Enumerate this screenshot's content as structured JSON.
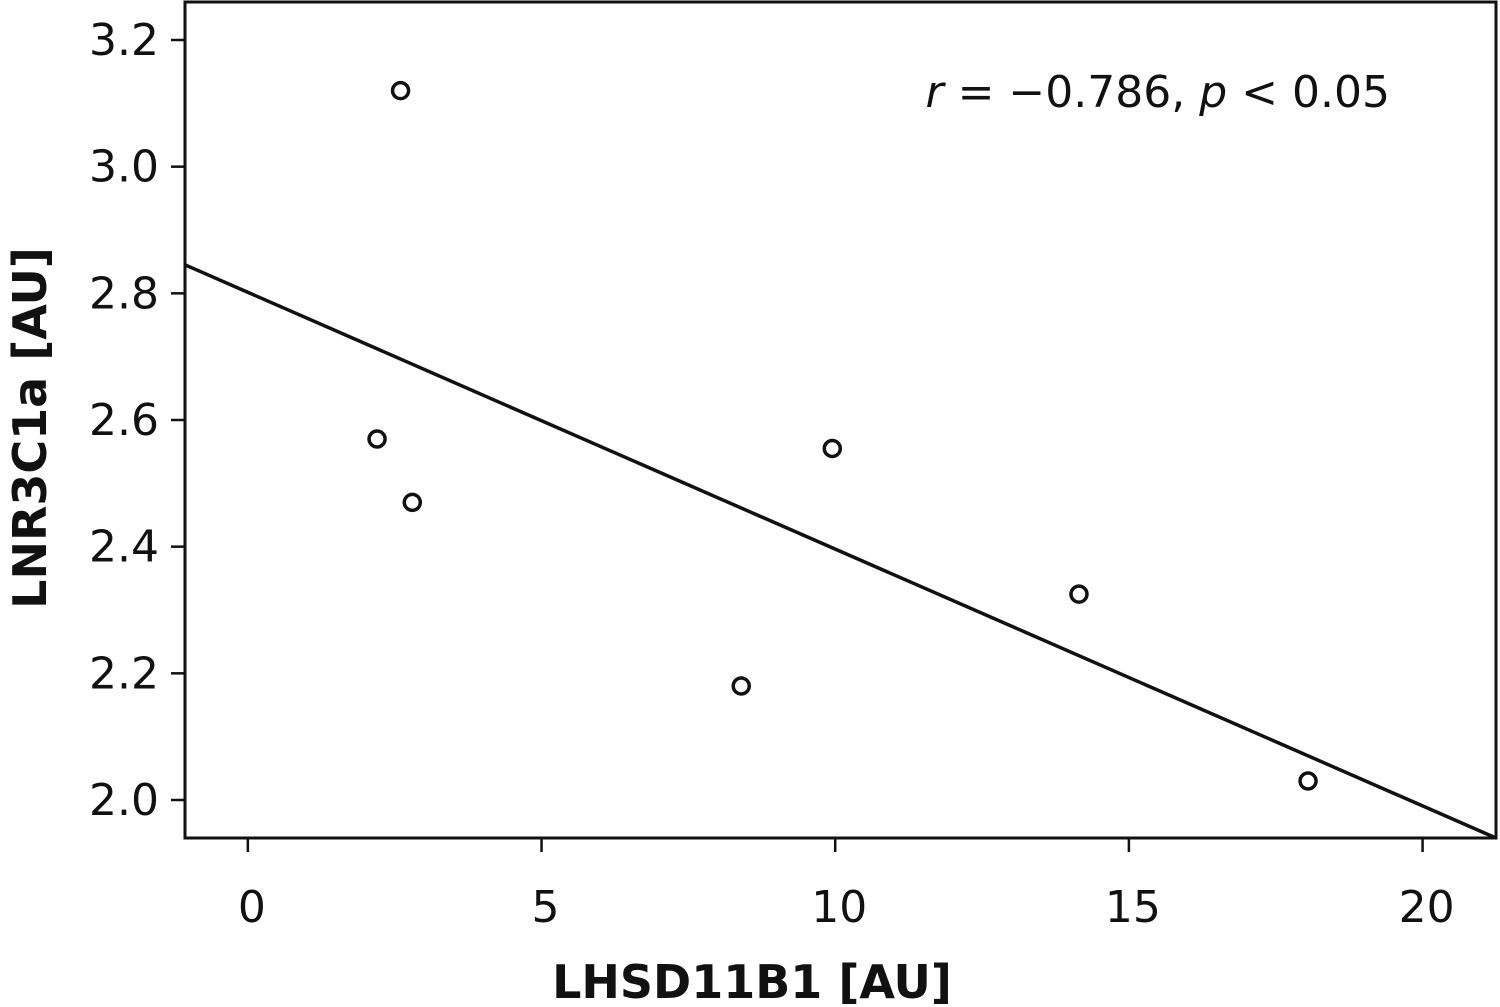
{
  "chart_data": {
    "type": "scatter",
    "xlabel": "LHSD11B1 [AU]",
    "ylabel": "LNR3C1a [AU]",
    "xlim": [
      -1.07,
      21.25
    ],
    "ylim": [
      1.94,
      3.26
    ],
    "xticks": [
      0,
      5,
      10,
      15,
      20
    ],
    "yticks": [
      2.0,
      2.2,
      2.4,
      2.6,
      2.8,
      3.0,
      3.2
    ],
    "xtick_labels": [
      "0",
      "5",
      "10",
      "15",
      "20"
    ],
    "ytick_labels": [
      "2.0",
      "2.2",
      "2.4",
      "2.6",
      "2.8",
      "3.0",
      "3.2"
    ],
    "grid": false,
    "series": [
      {
        "marker": "open-circle",
        "points": [
          {
            "x": 2.6,
            "y": 3.12
          },
          {
            "x": 2.2,
            "y": 2.57
          },
          {
            "x": 2.8,
            "y": 2.47
          },
          {
            "x": 8.4,
            "y": 2.18
          },
          {
            "x": 9.95,
            "y": 2.555
          },
          {
            "x": 14.15,
            "y": 2.325
          },
          {
            "x": 18.05,
            "y": 2.03
          }
        ]
      }
    ],
    "trendline": {
      "start": {
        "x": -1.07,
        "y": 2.845
      },
      "end": {
        "x": 21.25,
        "y": 1.94
      }
    },
    "annotation": {
      "r_sym": "r",
      "r_text": " = −0.786, ",
      "p_sym": "p",
      "p_text": " < 0.05"
    }
  }
}
